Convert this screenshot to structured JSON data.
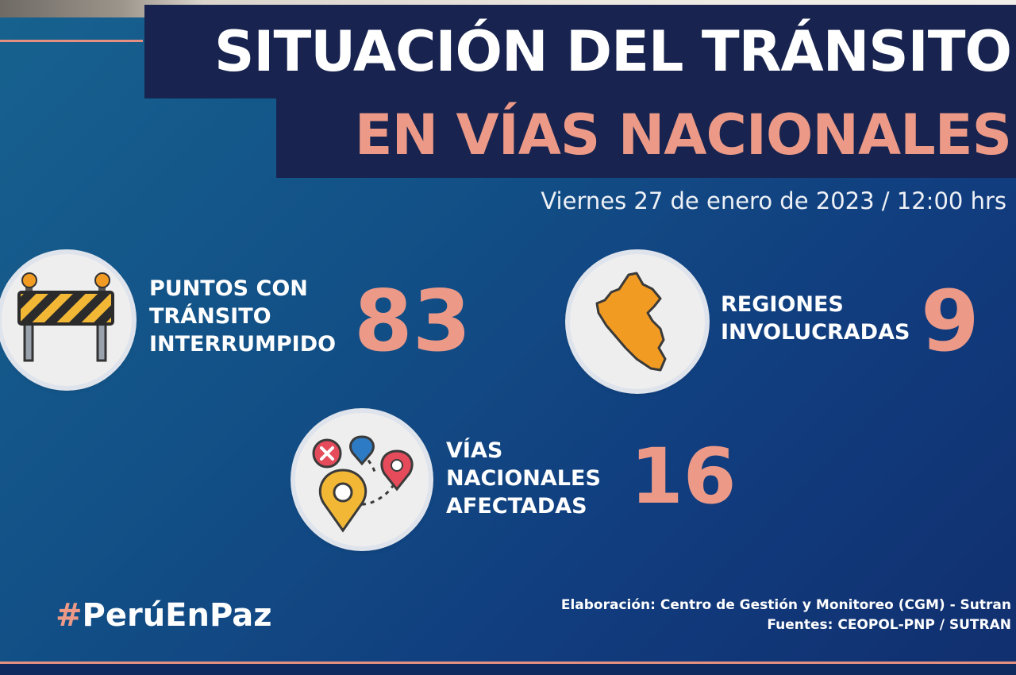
{
  "title": {
    "line1": "SITUACIÓN DEL TRÁNSITO",
    "line2": "EN VÍAS NACIONALES"
  },
  "date": "Viernes 27 de enero de 2023 / 12:00 hrs",
  "stats": {
    "puntos": {
      "label_lines": [
        "PUNTOS CON",
        "TRÁNSITO",
        "INTERRUMPIDO"
      ],
      "value": "83",
      "icon": "road-barrier-icon"
    },
    "regiones": {
      "label_lines": [
        "REGIONES",
        "INVOLUCRADAS"
      ],
      "value": "9",
      "icon": "peru-map-icon"
    },
    "vias": {
      "label_lines": [
        "VÍAS",
        "NACIONALES",
        "AFECTADAS"
      ],
      "value": "16",
      "icon": "map-pins-route-icon"
    }
  },
  "hashtag": {
    "hash": "#",
    "text": "PerúEnPaz"
  },
  "credits": {
    "line1": "Elaboración: Centro de Gestión y Monitoreo (CGM) - Sutran",
    "line2": "Fuentes:  CEOPOL-PNP / SUTRAN"
  },
  "colors": {
    "accent": "#ec9a87",
    "title_bg": "#18244f",
    "background": "#124f86"
  }
}
